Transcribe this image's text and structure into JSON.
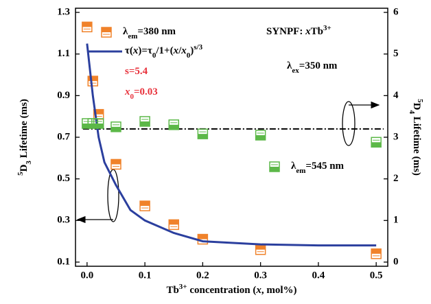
{
  "chart_data": {
    "type": "scatter",
    "xlabel": [
      {
        "t": "Tb"
      },
      {
        "t": "3+",
        "s": "sup"
      },
      {
        "t": " concentration ("
      },
      {
        "t": "x",
        "s": "i"
      },
      {
        "t": ", mol%)"
      }
    ],
    "ylabel": [
      {
        "t": "5",
        "s": "sup"
      },
      {
        "t": "D"
      },
      {
        "t": "3",
        "s": "sub"
      },
      {
        "t": " Lifetime (ms)"
      }
    ],
    "y2label": [
      {
        "t": "5",
        "s": "sup"
      },
      {
        "t": "D"
      },
      {
        "t": "4",
        "s": "sub"
      },
      {
        "t": " Lifetime (ms)"
      }
    ],
    "xlim": [
      -0.02,
      0.52
    ],
    "xticks": [
      {
        "value": 0,
        "label": "0.0"
      },
      0.1,
      0.2,
      0.3,
      0.4,
      0.5
    ],
    "ylim": [
      0.08,
      1.32
    ],
    "yticks": [
      0.1,
      0.3,
      0.5,
      0.7,
      0.9,
      1.1,
      1.3
    ],
    "y2lim": [
      -0.1,
      6.1
    ],
    "y2ticks": [
      0,
      1,
      2,
      3,
      4,
      5,
      6
    ],
    "series": [
      {
        "name": [
          {
            "t": "λ"
          },
          {
            "t": "em",
            "s": "sub"
          },
          {
            "t": "=380 nm"
          }
        ],
        "color": "#f0822a",
        "marker": "top",
        "x": [
          0,
          0.01,
          0.02,
          0.05,
          0.1,
          0.15,
          0.2,
          0.3,
          0.5
        ],
        "values": [
          1.23,
          0.97,
          0.81,
          0.57,
          0.37,
          0.28,
          0.21,
          0.16,
          0.14
        ]
      },
      {
        "name": [
          {
            "t": "τ("
          },
          {
            "t": "x",
            "s": "i"
          },
          {
            "t": ")=τ"
          },
          {
            "t": "0",
            "s": "sub"
          },
          {
            "t": "/1+("
          },
          {
            "t": "x",
            "s": "i"
          },
          {
            "t": "/"
          },
          {
            "t": "x",
            "s": "i"
          },
          {
            "t": "0",
            "s": "sub"
          },
          {
            "t": ")"
          },
          {
            "t": "s/3",
            "s": "sup"
          }
        ],
        "color": "#2b3f9e",
        "type": "line",
        "x": [
          0,
          0.01,
          0.02,
          0.03,
          0.05,
          0.075,
          0.1,
          0.15,
          0.2,
          0.3,
          0.4,
          0.5
        ],
        "values": [
          1.15,
          0.9,
          0.7,
          0.58,
          0.47,
          0.35,
          0.3,
          0.24,
          0.2,
          0.185,
          0.18,
          0.18
        ]
      },
      {
        "name": [
          {
            "t": "λ"
          },
          {
            "t": "em",
            "s": "sub"
          },
          {
            "t": "=545 nm"
          }
        ],
        "color": "#5cb848",
        "marker": "bottom",
        "axis": "y2",
        "x": [
          0,
          0.01,
          0.02,
          0.05,
          0.1,
          0.15,
          0.2,
          0.3,
          0.5
        ],
        "values": [
          3.33,
          3.33,
          3.33,
          3.25,
          3.38,
          3.3,
          3.08,
          3.05,
          2.88
        ]
      }
    ],
    "hline": {
      "value": 3.2,
      "axis": "y2"
    },
    "annotations": [
      {
        "text": [
          {
            "t": "s=5.4"
          }
        ],
        "color": "#e8303a"
      },
      {
        "text": [
          {
            "t": "x",
            "s": "i"
          },
          {
            "t": "0",
            "s": "sub"
          },
          {
            "t": "=0.03"
          }
        ],
        "color": "#e8303a"
      },
      {
        "text": [
          {
            "t": "SYNPF: "
          },
          {
            "t": "x",
            "s": "i"
          },
          {
            "t": "Tb"
          },
          {
            "t": "3+",
            "s": "sup"
          }
        ],
        "color": "#000000"
      },
      {
        "text": [
          {
            "t": "λ"
          },
          {
            "t": "ex",
            "s": "sub"
          },
          {
            "t": "=350 nm"
          }
        ],
        "color": "#000000"
      }
    ]
  }
}
